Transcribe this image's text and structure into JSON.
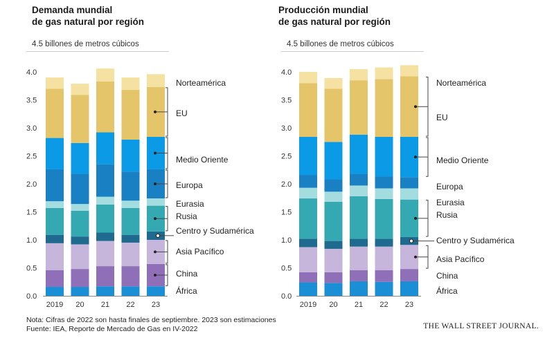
{
  "chart_data": [
    {
      "type": "bar",
      "stacked": true,
      "title": [
        "Demanda mundial",
        "de gas natural por región"
      ],
      "ylabel": "4.5 billones de metros cúbicos",
      "ylim": [
        0,
        4.0
      ],
      "yticks": [
        "0.0",
        "0.5",
        "1.0",
        "1.5",
        "2.0",
        "2.5",
        "3.0",
        "3.5",
        "4.0"
      ],
      "categories": [
        "2019",
        "20",
        "21",
        "22",
        "23"
      ],
      "series": [
        {
          "name": "África",
          "color": "#1a8fd6",
          "values": [
            0.16,
            0.16,
            0.17,
            0.17,
            0.17
          ]
        },
        {
          "name": "China",
          "color": "#8e6fb8",
          "values": [
            0.3,
            0.32,
            0.36,
            0.36,
            0.4
          ]
        },
        {
          "name": "Asia Pacífico",
          "color": "#c7b6dc",
          "values": [
            0.48,
            0.44,
            0.45,
            0.42,
            0.43
          ]
        },
        {
          "name": "Centro y Sudamérica",
          "color": "#1f6a8f",
          "values": [
            0.15,
            0.14,
            0.15,
            0.14,
            0.15
          ]
        },
        {
          "name": "Rusia",
          "color": "#35a9b2",
          "values": [
            0.48,
            0.46,
            0.5,
            0.48,
            0.46
          ]
        },
        {
          "name": "Eurasia",
          "color": "#a3dde0",
          "values": [
            0.12,
            0.12,
            0.14,
            0.13,
            0.13
          ]
        },
        {
          "name": "Europa",
          "color": "#1a80c4",
          "values": [
            0.57,
            0.54,
            0.58,
            0.52,
            0.52
          ]
        },
        {
          "name": "Medio Oriente",
          "color": "#0b9ae6",
          "values": [
            0.56,
            0.55,
            0.57,
            0.57,
            0.58
          ]
        },
        {
          "name": "EU",
          "color": "#e5c56a",
          "values": [
            0.88,
            0.86,
            0.91,
            0.89,
            0.89
          ]
        },
        {
          "name": "Norteamérica",
          "color": "#f5e2a2",
          "values": [
            0.2,
            0.2,
            0.23,
            0.22,
            0.23
          ]
        }
      ],
      "legend": [
        "Norteamérica",
        "EU",
        "Medio Oriente",
        "Europa",
        "Eurasia",
        "Rusia",
        "Centro y Sudamérica",
        "Asia Pacífico",
        "China",
        "África"
      ]
    },
    {
      "type": "bar",
      "stacked": true,
      "title": [
        "Producción mundial",
        "de gas natural por región"
      ],
      "ylabel": "4.5 billones de metros cúbicos",
      "ylim": [
        0,
        4.0
      ],
      "yticks": [
        "0.0",
        "0.5",
        "1.0",
        "1.5",
        "2.0",
        "2.5",
        "3.0",
        "3.5",
        "4.0"
      ],
      "categories": [
        "2019",
        "20",
        "21",
        "22",
        "23"
      ],
      "series": [
        {
          "name": "África",
          "color": "#1a8fd6",
          "values": [
            0.24,
            0.23,
            0.26,
            0.25,
            0.26
          ]
        },
        {
          "name": "China",
          "color": "#8e6fb8",
          "values": [
            0.18,
            0.19,
            0.2,
            0.21,
            0.22
          ]
        },
        {
          "name": "Asia Pacífico",
          "color": "#c7b6dc",
          "values": [
            0.45,
            0.42,
            0.42,
            0.42,
            0.43
          ]
        },
        {
          "name": "Centro y Sudamérica",
          "color": "#1f6a8f",
          "values": [
            0.15,
            0.14,
            0.14,
            0.14,
            0.14
          ]
        },
        {
          "name": "Rusia",
          "color": "#35a9b2",
          "values": [
            0.72,
            0.7,
            0.76,
            0.71,
            0.67
          ]
        },
        {
          "name": "Eurasia",
          "color": "#a3dde0",
          "values": [
            0.19,
            0.18,
            0.19,
            0.19,
            0.2
          ]
        },
        {
          "name": "Europa",
          "color": "#1a80c4",
          "values": [
            0.23,
            0.22,
            0.21,
            0.21,
            0.2
          ]
        },
        {
          "name": "Medio Oriente",
          "color": "#0b9ae6",
          "values": [
            0.68,
            0.67,
            0.7,
            0.71,
            0.72
          ]
        },
        {
          "name": "EU",
          "color": "#e5c56a",
          "values": [
            0.96,
            0.95,
            0.97,
            1.03,
            1.08
          ]
        },
        {
          "name": "Norteamérica",
          "color": "#f5e2a2",
          "values": [
            0.2,
            0.19,
            0.2,
            0.21,
            0.2
          ]
        }
      ],
      "legend": [
        "Norteamérica",
        "EU",
        "Medio Oriente",
        "Europa",
        "Eurasia",
        "Rusia",
        "Centro y Sudamérica",
        "Asia Pacífico",
        "China",
        "África"
      ]
    }
  ],
  "footer": {
    "note": "Nota: Cifras de 2022 son hasta finales de septiembre. 2023 son estimaciones",
    "source": "Fuente: IEA, Reporte de Mercado de Gas en IV-2022",
    "brand": "THE WALL STREET JOURNAL."
  }
}
